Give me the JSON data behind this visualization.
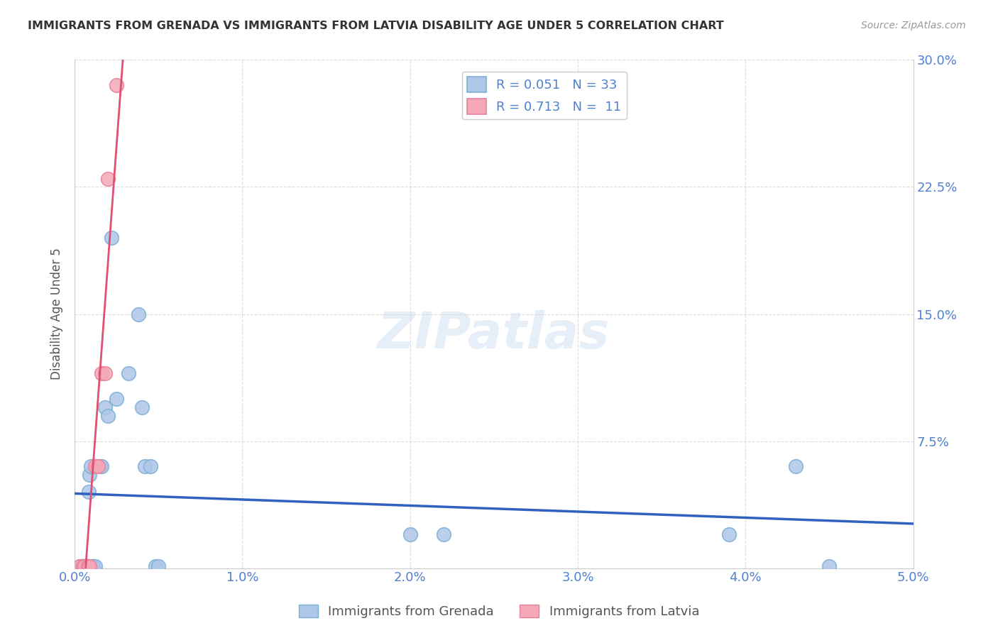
{
  "title": "IMMIGRANTS FROM GRENADA VS IMMIGRANTS FROM LATVIA DISABILITY AGE UNDER 5 CORRELATION CHART",
  "source": "Source: ZipAtlas.com",
  "ylabel": "Disability Age Under 5",
  "watermark": "ZIPatlas",
  "xlim": [
    0.0,
    0.05
  ],
  "ylim": [
    0.0,
    0.3
  ],
  "xticks": [
    0.0,
    0.01,
    0.02,
    0.03,
    0.04,
    0.05
  ],
  "yticks": [
    0.0,
    0.075,
    0.15,
    0.225,
    0.3
  ],
  "xticklabels": [
    "0.0%",
    "1.0%",
    "2.0%",
    "3.0%",
    "4.0%",
    "5.0%"
  ],
  "yticklabels_right": [
    "",
    "7.5%",
    "15.0%",
    "22.5%",
    "30.0%"
  ],
  "legend_line1": "R = 0.051   N = 33",
  "legend_line2": "R = 0.713   N =  11",
  "grenada_points": [
    [
      0.00035,
      0.001
    ],
    [
      0.00045,
      0.001
    ],
    [
      0.0005,
      0.001
    ],
    [
      0.00055,
      0.001
    ],
    [
      0.0006,
      0.001
    ],
    [
      0.00065,
      0.001
    ],
    [
      0.0007,
      0.001
    ],
    [
      0.0008,
      0.001
    ],
    [
      0.00085,
      0.045
    ],
    [
      0.0009,
      0.055
    ],
    [
      0.00095,
      0.06
    ],
    [
      0.001,
      0.001
    ],
    [
      0.0011,
      0.001
    ],
    [
      0.0012,
      0.001
    ],
    [
      0.0015,
      0.06
    ],
    [
      0.0016,
      0.06
    ],
    [
      0.0018,
      0.095
    ],
    [
      0.002,
      0.09
    ],
    [
      0.0022,
      0.195
    ],
    [
      0.0025,
      0.1
    ],
    [
      0.0032,
      0.115
    ],
    [
      0.0038,
      0.15
    ],
    [
      0.004,
      0.095
    ],
    [
      0.0042,
      0.06
    ],
    [
      0.0045,
      0.06
    ],
    [
      0.0048,
      0.001
    ],
    [
      0.005,
      0.001
    ],
    [
      0.0008,
      0.001
    ],
    [
      0.02,
      0.02
    ],
    [
      0.022,
      0.02
    ],
    [
      0.039,
      0.02
    ],
    [
      0.043,
      0.06
    ],
    [
      0.045,
      0.001
    ]
  ],
  "latvia_points": [
    [
      0.0003,
      0.001
    ],
    [
      0.0005,
      0.001
    ],
    [
      0.0006,
      0.001
    ],
    [
      0.0008,
      0.001
    ],
    [
      0.0009,
      0.001
    ],
    [
      0.0012,
      0.06
    ],
    [
      0.0014,
      0.06
    ],
    [
      0.0016,
      0.115
    ],
    [
      0.0018,
      0.115
    ],
    [
      0.002,
      0.23
    ],
    [
      0.0025,
      0.285
    ]
  ],
  "grenada_color": "#7bafd4",
  "grenada_fill": "#aec6e8",
  "latvia_color": "#e8809a",
  "latvia_fill": "#f4a8b8",
  "trendline_grenada_color": "#3060c0",
  "trendline_latvia_color": "#e05070",
  "background_color": "#ffffff",
  "grid_color": "#dddddd"
}
